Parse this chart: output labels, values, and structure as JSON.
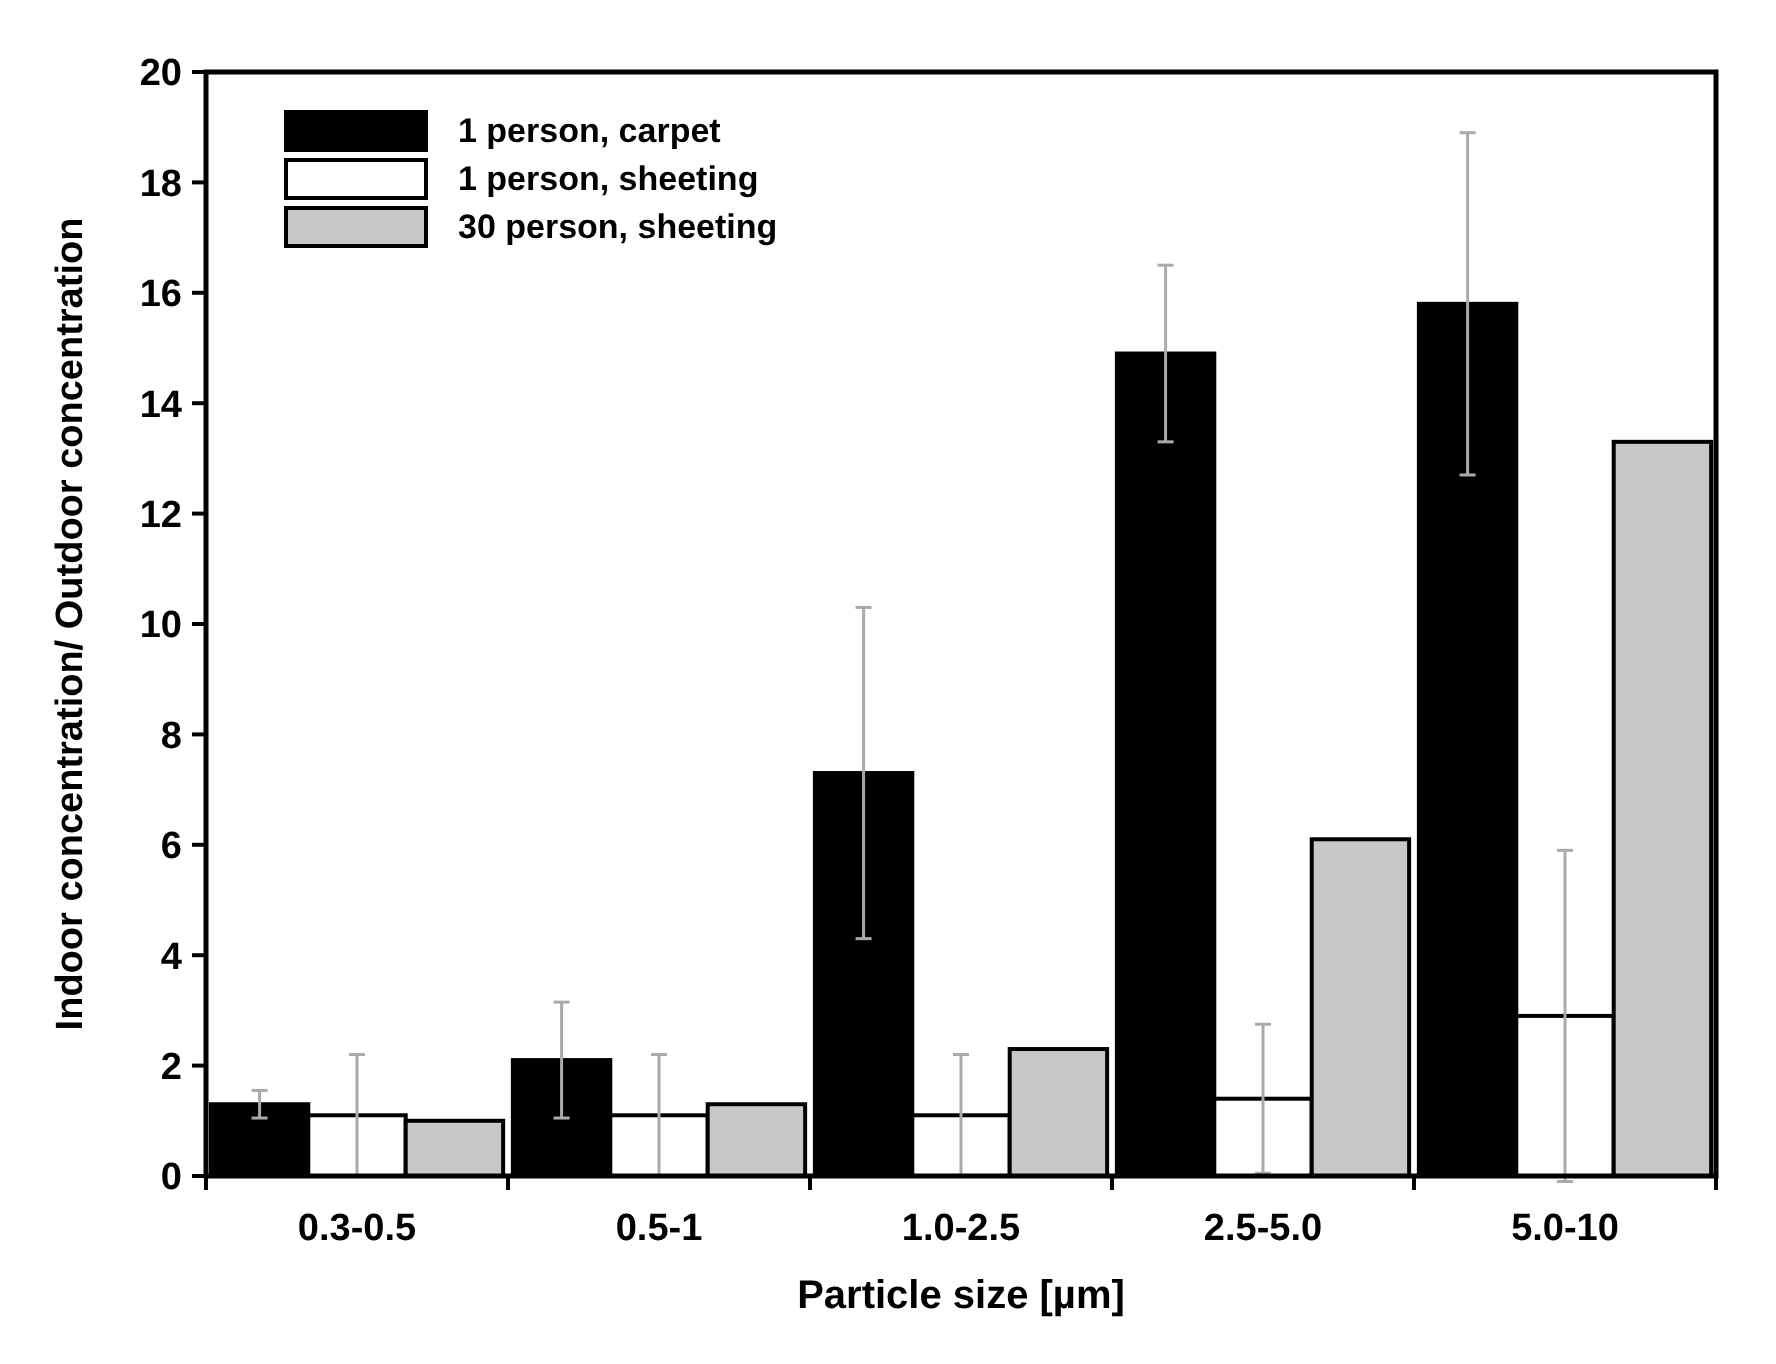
{
  "chart_data": {
    "type": "bar",
    "xlabel": "Particle size [µm]",
    "ylabel": "Indoor concentration/ Outdoor concentration",
    "categories": [
      "0.3-0.5",
      "0.5-1",
      "1.0-2.5",
      "2.5-5.0",
      "5.0-10"
    ],
    "series": [
      {
        "name": "1 person, carpet",
        "color": "#000000",
        "values": [
          1.3,
          2.1,
          7.3,
          14.9,
          15.8
        ],
        "errors": [
          0.25,
          1.05,
          3.0,
          1.6,
          3.1
        ]
      },
      {
        "name": "1 person, sheeting",
        "color": "#ffffff",
        "values": [
          1.1,
          1.1,
          1.1,
          1.4,
          2.9
        ],
        "errors": [
          1.1,
          1.1,
          1.1,
          1.35,
          3.0
        ]
      },
      {
        "name": "30 person, sheeting",
        "color": "#c8c8c8",
        "values": [
          1.0,
          1.3,
          2.3,
          6.1,
          13.3
        ]
      }
    ],
    "ylim": [
      0,
      20
    ],
    "yticks": [
      0,
      2,
      4,
      6,
      8,
      10,
      12,
      14,
      16,
      18,
      20
    ],
    "grid": false,
    "legend": "top left"
  }
}
